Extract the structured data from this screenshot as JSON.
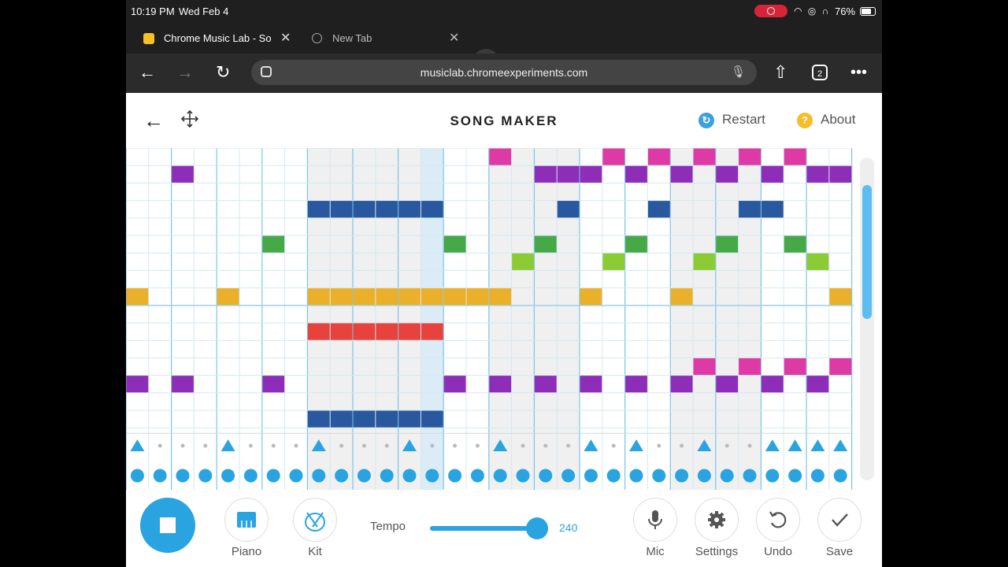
{
  "status_bar": {
    "time": "10:19 PM",
    "date": "Wed Feb 4",
    "battery": "76%"
  },
  "browser": {
    "tabs": [
      {
        "label": "Chrome Music Lab - Son",
        "active": true
      },
      {
        "label": "New Tab",
        "active": false
      }
    ],
    "url": "musiclab.chromeexperiments.com",
    "tab_count": "2"
  },
  "app": {
    "title": "SONG MAKER",
    "restart_label": "Restart",
    "about_label": "About"
  },
  "colors": {
    "magenta": "#de3aa6",
    "purple": "#8e2db8",
    "blue": "#2a589e",
    "green": "#46a847",
    "lime": "#8bcc36",
    "orange": "#ebb02a",
    "red": "#e8423c",
    "accent": "#2aa4e0"
  },
  "grid": {
    "columns": 32,
    "rows": 16,
    "playhead_col": 13,
    "shaded_ranges": [
      [
        8,
        13
      ],
      [
        16,
        19
      ],
      [
        24,
        27
      ]
    ],
    "notes": {
      "magenta": [
        [
          16,
          0
        ],
        [
          21,
          0
        ],
        [
          23,
          0
        ],
        [
          25,
          0
        ],
        [
          27,
          0
        ],
        [
          29,
          0
        ],
        [
          25,
          12
        ],
        [
          27,
          12
        ],
        [
          29,
          12
        ],
        [
          31,
          12
        ]
      ],
      "purple": [
        [
          2,
          1
        ],
        [
          18,
          1
        ],
        [
          19,
          1
        ],
        [
          20,
          1
        ],
        [
          22,
          1
        ],
        [
          24,
          1
        ],
        [
          26,
          1
        ],
        [
          28,
          1
        ],
        [
          30,
          1
        ],
        [
          31,
          1
        ],
        [
          0,
          13
        ],
        [
          2,
          13
        ],
        [
          6,
          13
        ],
        [
          14,
          13
        ],
        [
          16,
          13
        ],
        [
          18,
          13
        ],
        [
          20,
          13
        ],
        [
          22,
          13
        ],
        [
          24,
          13
        ],
        [
          26,
          13
        ],
        [
          28,
          13
        ],
        [
          30,
          13
        ]
      ],
      "blue": [
        [
          8,
          3
        ],
        [
          9,
          3
        ],
        [
          10,
          3
        ],
        [
          11,
          3
        ],
        [
          12,
          3
        ],
        [
          13,
          3
        ],
        [
          19,
          3
        ],
        [
          23,
          3
        ],
        [
          27,
          3
        ],
        [
          28,
          3
        ],
        [
          8,
          15
        ],
        [
          9,
          15
        ],
        [
          10,
          15
        ],
        [
          11,
          15
        ],
        [
          12,
          15
        ],
        [
          13,
          15
        ]
      ],
      "green": [
        [
          6,
          5
        ],
        [
          14,
          5
        ],
        [
          18,
          5
        ],
        [
          22,
          5
        ],
        [
          26,
          5
        ],
        [
          29,
          5
        ]
      ],
      "lime": [
        [
          17,
          6
        ],
        [
          21,
          6
        ],
        [
          25,
          6
        ],
        [
          30,
          6
        ]
      ],
      "orange": [
        [
          0,
          8
        ],
        [
          4,
          8
        ],
        [
          8,
          8
        ],
        [
          9,
          8
        ],
        [
          10,
          8
        ],
        [
          11,
          8
        ],
        [
          12,
          8
        ],
        [
          13,
          8
        ],
        [
          14,
          8
        ],
        [
          15,
          8
        ],
        [
          16,
          8
        ],
        [
          20,
          8
        ],
        [
          24,
          8
        ],
        [
          31,
          8
        ]
      ],
      "red": [
        [
          8,
          10
        ],
        [
          9,
          10
        ],
        [
          10,
          10
        ],
        [
          11,
          10
        ],
        [
          12,
          10
        ],
        [
          13,
          10
        ]
      ]
    },
    "drum_triangles": [
      0,
      4,
      8,
      12,
      16,
      20,
      22,
      25,
      28,
      29,
      30,
      31
    ],
    "drum_circles": [
      0,
      1,
      2,
      3,
      4,
      5,
      6,
      7,
      8,
      9,
      10,
      11,
      12,
      13,
      14,
      15,
      16,
      17,
      18,
      19,
      20,
      21,
      22,
      23,
      24,
      25,
      26,
      27,
      28,
      29,
      30,
      31
    ]
  },
  "controls": {
    "piano_label": "Piano",
    "kit_label": "Kit",
    "tempo_label": "Tempo",
    "tempo_value": "240",
    "tempo_fraction": 0.93,
    "mic_label": "Mic",
    "settings_label": "Settings",
    "undo_label": "Undo",
    "save_label": "Save"
  }
}
